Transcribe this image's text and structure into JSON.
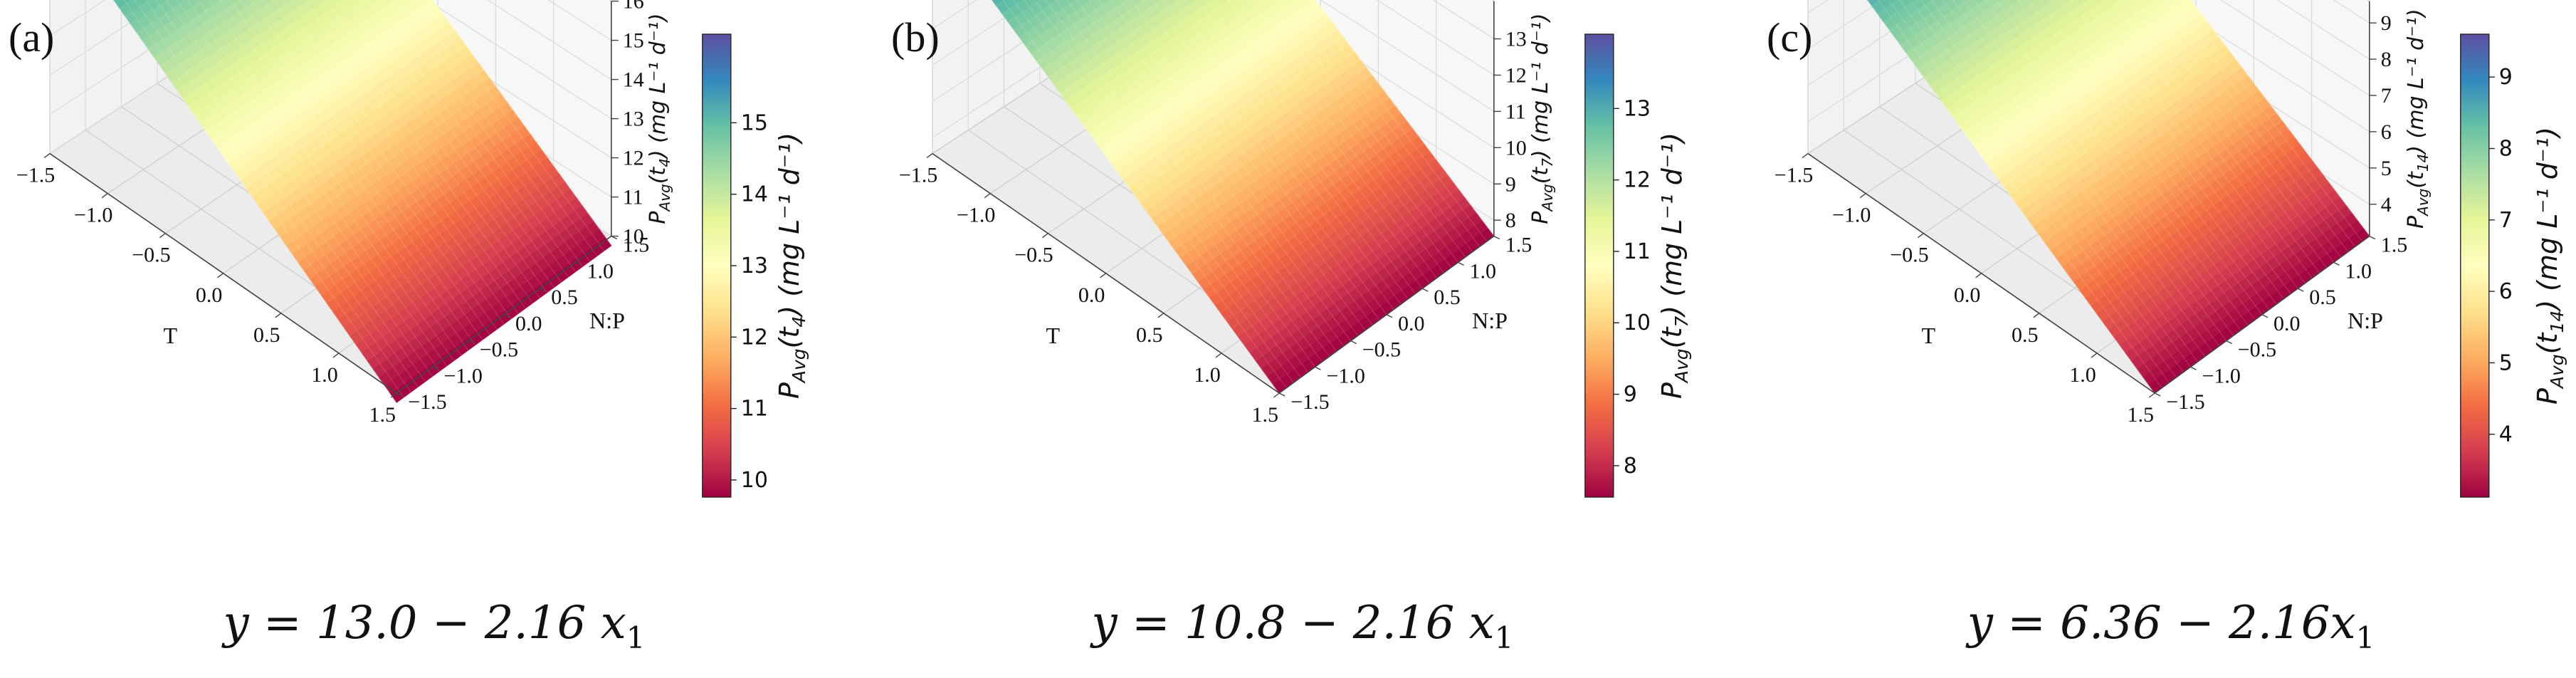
{
  "chart_data": [
    {
      "type": "surface3d",
      "panel_label": "(a)",
      "xlabel": "T",
      "ylabel": "N:P",
      "zlabel_main": "P",
      "zlabel_sub": "Avg",
      "zlabel_arg": "t",
      "zlabel_arg_sub": "4",
      "zlabel_units": "mg L⁻¹ d⁻¹",
      "x_ticks": [
        "−1.5",
        "−1.0",
        "−0.5",
        "0.0",
        "0.5",
        "1.0",
        "1.5"
      ],
      "y_ticks": [
        "−1.5",
        "−1.0",
        "−0.5",
        "0.0",
        "0.5",
        "1.0",
        "1.5"
      ],
      "z_ticks": [
        "10",
        "11",
        "12",
        "13",
        "14",
        "15",
        "16"
      ],
      "z_tick_values": [
        10,
        11,
        12,
        13,
        14,
        15,
        16
      ],
      "zlim": [
        10,
        16
      ],
      "colorbar_ticks": [
        "10",
        "11",
        "12",
        "13",
        "14",
        "15"
      ],
      "colorbar_tick_values": [
        10,
        11,
        12,
        13,
        14,
        15
      ],
      "colorbar_range": [
        9.76,
        16.24
      ],
      "colormap": "Spectral",
      "intercept": 13.0,
      "slope": -2.16,
      "equation": "y = 13.0 − 2.16 x",
      "equation_sub": "1"
    },
    {
      "type": "surface3d",
      "panel_label": "(b)",
      "xlabel": "T",
      "ylabel": "N:P",
      "zlabel_main": "P",
      "zlabel_sub": "Avg",
      "zlabel_arg": "t",
      "zlabel_arg_sub": "7",
      "zlabel_units": "mg L⁻¹ d⁻¹",
      "x_ticks": [
        "−1.5",
        "−1.0",
        "−0.5",
        "0.0",
        "0.5",
        "1.0",
        "1.5"
      ],
      "y_ticks": [
        "−1.5",
        "−1.0",
        "−0.5",
        "0.0",
        "0.5",
        "1.0",
        "1.5"
      ],
      "z_ticks": [
        "8",
        "9",
        "10",
        "11",
        "12",
        "13"
      ],
      "z_tick_values": [
        8,
        9,
        10,
        11,
        12,
        13
      ],
      "zlim": [
        7.56,
        14.04
      ],
      "colorbar_ticks": [
        "8",
        "9",
        "10",
        "11",
        "12",
        "13"
      ],
      "colorbar_tick_values": [
        8,
        9,
        10,
        11,
        12,
        13
      ],
      "colorbar_range": [
        7.56,
        14.04
      ],
      "colormap": "Spectral",
      "intercept": 10.8,
      "slope": -2.16,
      "equation": "y = 10.8 − 2.16 x",
      "equation_sub": "1"
    },
    {
      "type": "surface3d",
      "panel_label": "(c)",
      "xlabel": "T",
      "ylabel": "N:P",
      "zlabel_main": "P",
      "zlabel_sub": "Avg",
      "zlabel_arg": "t",
      "zlabel_arg_sub": "14",
      "zlabel_units": "mg L⁻¹ d⁻¹",
      "x_ticks": [
        "−1.5",
        "−1.0",
        "−0.5",
        "0.0",
        "0.5",
        "1.0",
        "1.5"
      ],
      "y_ticks": [
        "−1.5",
        "−1.0",
        "−0.5",
        "0.0",
        "0.5",
        "1.0",
        "1.5"
      ],
      "z_ticks": [
        "4",
        "5",
        "6",
        "7",
        "8",
        "9"
      ],
      "z_tick_values": [
        4,
        5,
        6,
        7,
        8,
        9
      ],
      "zlim": [
        3.12,
        9.6
      ],
      "colorbar_ticks": [
        "4",
        "5",
        "6",
        "7",
        "8",
        "9"
      ],
      "colorbar_tick_values": [
        4,
        5,
        6,
        7,
        8,
        9
      ],
      "colorbar_range": [
        3.12,
        9.6
      ],
      "colormap": "Spectral",
      "intercept": 6.36,
      "slope": -2.16,
      "equation": "y = 6.36 − 2.16x",
      "equation_sub": "1"
    }
  ]
}
